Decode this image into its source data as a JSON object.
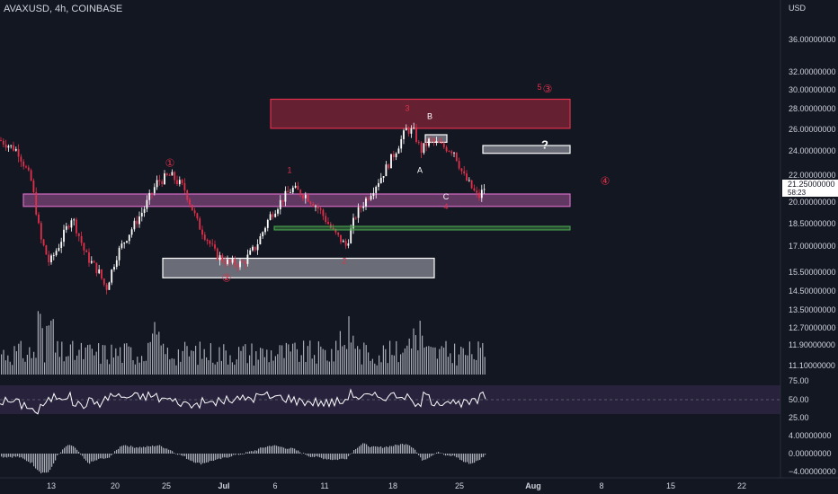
{
  "header": {
    "title": "AVAXUSD, 4h, COINBASE",
    "axis_unit": "USD"
  },
  "colors": {
    "background": "#131722",
    "up": "#ffffff",
    "down": "#e0304a",
    "volume": "#c3c6ce",
    "rsi_line": "#ffffff",
    "rsi_band": "#2b2440",
    "macd_hist": "#c3c6ce",
    "resistance_zone": "#e0304a",
    "support_zone": "#d56cc3",
    "green_line": "#4caf50",
    "grey_zone": "#b2b5be",
    "label_red": "#e0304a",
    "label_white": "#ffffff",
    "axis_text": "#d1d4dc"
  },
  "chart_data": {
    "type": "candlestick",
    "symbol": "AVAXUSD",
    "timeframe": "4h",
    "exchange": "COINBASE",
    "price_axis": {
      "unit": "USD",
      "ticks": [
        "36.00000000",
        "32.00000000",
        "30.00000000",
        "28.00000000",
        "26.00000000",
        "24.00000000",
        "22.00000000",
        "20.00000000",
        "18.50000000",
        "17.00000000",
        "15.50000000",
        "14.50000000",
        "13.50000000",
        "12.70000000",
        "11.90000000",
        "11.10000000"
      ],
      "current_price": "21.25000000",
      "countdown": "58:23"
    },
    "rsi_axis": {
      "ticks": [
        "75.00",
        "50.00",
        "25.00"
      ],
      "band": [
        30,
        70
      ]
    },
    "macd_axis": {
      "ticks": [
        "4.00000000",
        "0.00000000",
        "−4.00000000"
      ]
    },
    "time_axis": {
      "ticks": [
        "13",
        "20",
        "25",
        "Jul",
        "6",
        "11",
        "18",
        "25",
        "Aug",
        "8",
        "15",
        "22"
      ]
    },
    "price_path": [
      [
        0,
        25.0
      ],
      [
        20,
        24.0
      ],
      [
        35,
        21.5
      ],
      [
        45,
        17.5
      ],
      [
        55,
        16.0
      ],
      [
        65,
        17.0
      ],
      [
        80,
        19.0
      ],
      [
        95,
        16.5
      ],
      [
        110,
        15.5
      ],
      [
        118,
        14.6
      ],
      [
        130,
        16.5
      ],
      [
        145,
        18.0
      ],
      [
        160,
        19.5
      ],
      [
        175,
        21.5
      ],
      [
        190,
        22.0
      ],
      [
        205,
        21.0
      ],
      [
        220,
        18.5
      ],
      [
        240,
        16.5
      ],
      [
        255,
        16.0
      ],
      [
        270,
        16.0
      ],
      [
        285,
        17.0
      ],
      [
        300,
        19.0
      ],
      [
        315,
        20.3
      ],
      [
        325,
        21.0
      ],
      [
        340,
        20.5
      ],
      [
        355,
        19.5
      ],
      [
        370,
        18.0
      ],
      [
        385,
        17.0
      ],
      [
        395,
        19.0
      ],
      [
        410,
        20.5
      ],
      [
        425,
        22.0
      ],
      [
        440,
        24.0
      ],
      [
        452,
        26.0
      ],
      [
        460,
        25.8
      ],
      [
        468,
        24.0
      ],
      [
        478,
        25.0
      ],
      [
        490,
        24.5
      ],
      [
        505,
        24.0
      ],
      [
        515,
        22.0
      ],
      [
        525,
        21.0
      ],
      [
        532,
        20.3
      ],
      [
        540,
        21.2
      ]
    ],
    "zones": [
      {
        "kind": "resistance",
        "x_start": 301,
        "x_end": 634,
        "top": 29.0,
        "bottom": 26.1
      },
      {
        "kind": "support",
        "x_start": 26,
        "x_end": 634,
        "top": 20.6,
        "bottom": 19.7
      },
      {
        "kind": "range",
        "x_start": 181,
        "x_end": 483,
        "top": 16.3,
        "bottom": 15.2
      },
      {
        "kind": "range",
        "x_start": 473,
        "x_end": 497,
        "top": 25.5,
        "bottom": 24.8
      },
      {
        "kind": "range",
        "x_start": 537,
        "x_end": 634,
        "top": 24.5,
        "bottom": 23.8
      },
      {
        "kind": "line",
        "x_start": 305,
        "x_end": 634,
        "price": 18.2
      }
    ],
    "wave_labels": [
      {
        "text": "①",
        "x": 189,
        "price": 22.7,
        "color": "red"
      },
      {
        "text": "②",
        "x": 252,
        "price": 15.0,
        "color": "red"
      },
      {
        "text": "③",
        "x": 609,
        "price": 29.7,
        "color": "red"
      },
      {
        "text": "④",
        "x": 673,
        "price": 21.3,
        "color": "red"
      },
      {
        "text": "5",
        "x": 600,
        "price": 30.0,
        "color": "red"
      },
      {
        "text": "1",
        "x": 322,
        "price": 22.2,
        "color": "red"
      },
      {
        "text": "2",
        "x": 383,
        "price": 16.0,
        "color": "red"
      },
      {
        "text": "3",
        "x": 453,
        "price": 27.8,
        "color": "red"
      },
      {
        "text": "4",
        "x": 496,
        "price": 19.5,
        "color": "red"
      },
      {
        "text": "A",
        "x": 467,
        "price": 22.2,
        "color": "white"
      },
      {
        "text": "B",
        "x": 478,
        "price": 27.0,
        "color": "white"
      },
      {
        "text": "C",
        "x": 496,
        "price": 20.2,
        "color": "white"
      },
      {
        "text": "?",
        "x": 606,
        "price": 24.2,
        "color": "white"
      }
    ]
  }
}
